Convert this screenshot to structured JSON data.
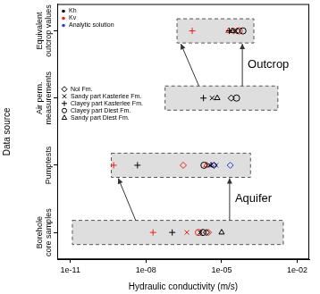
{
  "chart_data": {
    "type": "scatter",
    "x_label": "Hydraulic conductivity (m/s)",
    "y_label": "Data source",
    "log": "x",
    "grid": false,
    "legend": "top left",
    "xlim": [
      3e-12,
      0.03
    ],
    "xticks": [
      {
        "value": 1e-11,
        "label": "1e-11"
      },
      {
        "value": 1e-08,
        "label": "1e-08"
      },
      {
        "value": 1e-05,
        "label": "1e-05"
      },
      {
        "value": 0.01,
        "label": "1e-02"
      }
    ],
    "categories": [
      "Borehole core samples",
      "Pumptests",
      "Air perm. measurements",
      "Equivalent outcrop values"
    ],
    "ranges": [
      {
        "category": "Borehole core samples",
        "min": 1.2e-11,
        "max": 0.0028
      },
      {
        "category": "Pumptests",
        "min": 4.2e-10,
        "max": 0.00014
      },
      {
        "category": "Air perm. measurements",
        "min": 5.7e-08,
        "max": 0.0017
      },
      {
        "category": "Equivalent outcrop values",
        "min": 1.7e-07,
        "max": 0.00019
      }
    ],
    "arrows": [
      {
        "from": "Borehole core samples",
        "to": "Pumptests",
        "label": "Aquifer"
      },
      {
        "from": "Air perm. measurements",
        "to": "Equivalent outcrop values",
        "label": "Outcrop"
      }
    ],
    "formations": [
      {
        "name": "Nol Fm.",
        "marker": "diamond"
      },
      {
        "name": "Sandy part Kasterlee Fm.",
        "marker": "x"
      },
      {
        "name": "Clayey part Kasterlee Fm.",
        "marker": "plus"
      },
      {
        "name": "Clayey part Diest Fm.",
        "marker": "circle"
      },
      {
        "name": "Sandy part Diest Fm.",
        "marker": "triangle"
      }
    ],
    "series": [
      {
        "name": "Kh",
        "color": "#000000",
        "points": [
          {
            "x": 1.1e-07,
            "category": "Borehole core samples",
            "formation": "Clayey part Kasterlee Fm."
          },
          {
            "x": 1.4e-06,
            "category": "Borehole core samples",
            "formation": "Sandy part Kasterlee Fm."
          },
          {
            "x": 1.8e-06,
            "category": "Borehole core samples",
            "formation": "Clayey part Diest Fm."
          },
          {
            "x": 2.5e-06,
            "category": "Borehole core samples",
            "formation": "Nol Fm."
          },
          {
            "x": 1e-05,
            "category": "Borehole core samples",
            "formation": "Sandy part Diest Fm."
          },
          {
            "x": 4.6e-09,
            "category": "Pumptests",
            "formation": "Clayey part Kasterlee Fm."
          },
          {
            "x": 2e-06,
            "category": "Pumptests",
            "formation": "Clayey part Diest Fm."
          },
          {
            "x": 3.5e-06,
            "category": "Pumptests",
            "formation": "Sandy part Kasterlee Fm."
          },
          {
            "x": 5e-06,
            "category": "Pumptests",
            "formation": "Nol Fm."
          },
          {
            "x": 1.9e-06,
            "category": "Air perm. measurements",
            "formation": "Clayey part Kasterlee Fm."
          },
          {
            "x": 4.2e-06,
            "category": "Air perm. measurements",
            "formation": "Sandy part Kasterlee Fm."
          },
          {
            "x": 6.7e-06,
            "category": "Air perm. measurements",
            "formation": "Sandy part Diest Fm."
          },
          {
            "x": 2.4e-05,
            "category": "Air perm. measurements",
            "formation": "Nol Fm."
          },
          {
            "x": 3.9e-05,
            "category": "Air perm. measurements",
            "formation": "Clayey part Diest Fm."
          },
          {
            "x": 2e-05,
            "category": "Equivalent outcrop values",
            "formation": "Clayey part Kasterlee Fm."
          },
          {
            "x": 2.6e-05,
            "category": "Equivalent outcrop values",
            "formation": "Sandy part Diest Fm."
          },
          {
            "x": 3.6e-05,
            "category": "Equivalent outcrop values",
            "formation": "Sandy part Kasterlee Fm."
          },
          {
            "x": 4.2e-05,
            "category": "Equivalent outcrop values",
            "formation": "Nol Fm."
          },
          {
            "x": 7e-05,
            "category": "Equivalent outcrop values",
            "formation": "Clayey part Diest Fm."
          }
        ]
      },
      {
        "name": "Kv",
        "color": "#e8211c",
        "points": [
          {
            "x": 1.9e-08,
            "category": "Borehole core samples",
            "formation": "Clayey part Kasterlee Fm."
          },
          {
            "x": 4.2e-07,
            "category": "Borehole core samples",
            "formation": "Sandy part Kasterlee Fm."
          },
          {
            "x": 1.2e-06,
            "category": "Borehole core samples",
            "formation": "Clayey part Diest Fm."
          },
          {
            "x": 3e-06,
            "category": "Borehole core samples",
            "formation": "Nol Fm."
          },
          {
            "x": 5.2e-10,
            "category": "Pumptests",
            "formation": "Clayey part Kasterlee Fm."
          },
          {
            "x": 3e-07,
            "category": "Pumptests",
            "formation": "Nol Fm."
          },
          {
            "x": 2.5e-06,
            "category": "Pumptests",
            "formation": "Sandy part Diest Fm."
          },
          {
            "x": 6.8e-07,
            "category": "Equivalent outcrop values",
            "formation": "Clayey part Kasterlee Fm."
          },
          {
            "x": 1.9e-05,
            "category": "Equivalent outcrop values",
            "formation": "Sandy part Diest Fm."
          },
          {
            "x": 3e-05,
            "category": "Equivalent outcrop values",
            "formation": "Nol Fm."
          },
          {
            "x": 5e-05,
            "category": "Equivalent outcrop values",
            "formation": "Clayey part Diest Fm."
          }
        ]
      },
      {
        "name": "Analytic solution",
        "color": "#2b3fd6",
        "points": [
          {
            "x": 3.8e-06,
            "category": "Pumptests",
            "formation": "Sandy part Diest Fm."
          },
          {
            "x": 6e-06,
            "category": "Pumptests",
            "formation": "Sandy part Kasterlee Fm."
          },
          {
            "x": 2.2e-05,
            "category": "Pumptests",
            "formation": "Nol Fm."
          }
        ]
      }
    ]
  }
}
